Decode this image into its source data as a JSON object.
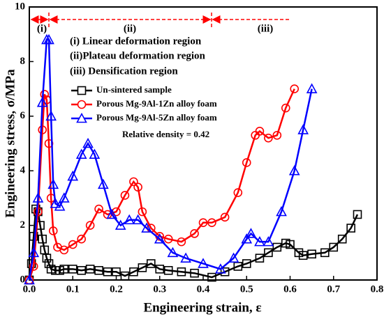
{
  "chart_data": {
    "type": "line",
    "xlabel": "Engineering strain, ε",
    "ylabel": "Engineering stress, σ/MPa",
    "xlim": [
      0,
      0.8
    ],
    "ylim": [
      0,
      10
    ],
    "xticks": [
      {
        "value": 0,
        "label": "0.0"
      },
      0.1,
      0.2,
      0.3,
      0.4,
      0.5,
      0.6,
      0.7,
      0.8
    ],
    "yticks": [
      0,
      2,
      4,
      6,
      8,
      10
    ],
    "region_labels": [
      "(i)",
      "(ii)",
      "(iii)"
    ],
    "annotations": [
      "(i) Linear deformation region",
      "(ii)Plateau deformation region",
      "(iii) Densification region",
      "Relative density = 0.42"
    ],
    "series": [
      {
        "name": "Un-sintered sample",
        "color": "#000000",
        "marker": "square",
        "x": [
          0,
          0.005,
          0.01,
          0.015,
          0.02,
          0.025,
          0.03,
          0.035,
          0.04,
          0.045,
          0.05,
          0.06,
          0.07,
          0.08,
          0.1,
          0.12,
          0.14,
          0.16,
          0.18,
          0.2,
          0.22,
          0.24,
          0.26,
          0.28,
          0.3,
          0.32,
          0.35,
          0.38,
          0.42,
          0.45,
          0.48,
          0.5,
          0.53,
          0.55,
          0.57,
          0.59,
          0.6,
          0.62,
          0.63,
          0.65,
          0.68,
          0.7,
          0.72,
          0.74,
          0.755
        ],
        "values": [
          0,
          0.6,
          1.6,
          2.6,
          2.5,
          2.0,
          1.5,
          1.1,
          0.8,
          0.6,
          0.4,
          0.35,
          0.35,
          0.4,
          0.4,
          0.35,
          0.4,
          0.35,
          0.3,
          0.3,
          0.15,
          0.3,
          0.45,
          0.6,
          0.4,
          0.35,
          0.3,
          0.25,
          0.1,
          0.3,
          0.5,
          0.6,
          0.8,
          1.0,
          1.2,
          1.35,
          1.3,
          1.0,
          0.9,
          0.95,
          1.0,
          1.2,
          1.5,
          1.9,
          2.4
        ]
      },
      {
        "name": "Porous Mg-9Al-1Zn alloy foam",
        "color": "#ff0000",
        "marker": "circle",
        "x": [
          0,
          0.01,
          0.02,
          0.03,
          0.035,
          0.04,
          0.045,
          0.05,
          0.055,
          0.065,
          0.08,
          0.1,
          0.12,
          0.14,
          0.16,
          0.18,
          0.2,
          0.22,
          0.24,
          0.25,
          0.26,
          0.28,
          0.3,
          0.32,
          0.35,
          0.38,
          0.4,
          0.42,
          0.45,
          0.48,
          0.5,
          0.52,
          0.53,
          0.55,
          0.57,
          0.59,
          0.61
        ],
        "values": [
          0,
          0.5,
          2.5,
          5.5,
          6.8,
          6.6,
          5.0,
          3.0,
          1.8,
          1.2,
          1.1,
          1.3,
          1.5,
          2.0,
          2.6,
          2.4,
          2.5,
          3.1,
          3.6,
          3.4,
          2.5,
          1.9,
          1.6,
          1.5,
          1.4,
          1.7,
          2.1,
          2.1,
          2.3,
          3.2,
          4.3,
          5.3,
          5.45,
          5.2,
          5.3,
          6.3,
          7.0
        ]
      },
      {
        "name": "Porous Mg-9Al-5Zn alloy foam",
        "color": "#0000ff",
        "marker": "triangle",
        "x": [
          0,
          0.01,
          0.02,
          0.03,
          0.04,
          0.045,
          0.05,
          0.055,
          0.06,
          0.07,
          0.08,
          0.1,
          0.12,
          0.135,
          0.15,
          0.17,
          0.19,
          0.21,
          0.23,
          0.25,
          0.27,
          0.3,
          0.33,
          0.36,
          0.4,
          0.44,
          0.47,
          0.5,
          0.51,
          0.53,
          0.55,
          0.58,
          0.61,
          0.63,
          0.65
        ],
        "values": [
          0,
          1.0,
          3.0,
          6.5,
          8.8,
          8.8,
          6.0,
          3.5,
          2.8,
          2.7,
          3.0,
          3.8,
          4.6,
          5.0,
          4.6,
          3.5,
          2.4,
          2.0,
          2.2,
          2.2,
          1.9,
          1.5,
          1.0,
          0.8,
          0.6,
          0.4,
          0.8,
          1.5,
          1.7,
          1.4,
          1.4,
          2.5,
          4.0,
          5.5,
          7.0
        ]
      }
    ]
  }
}
